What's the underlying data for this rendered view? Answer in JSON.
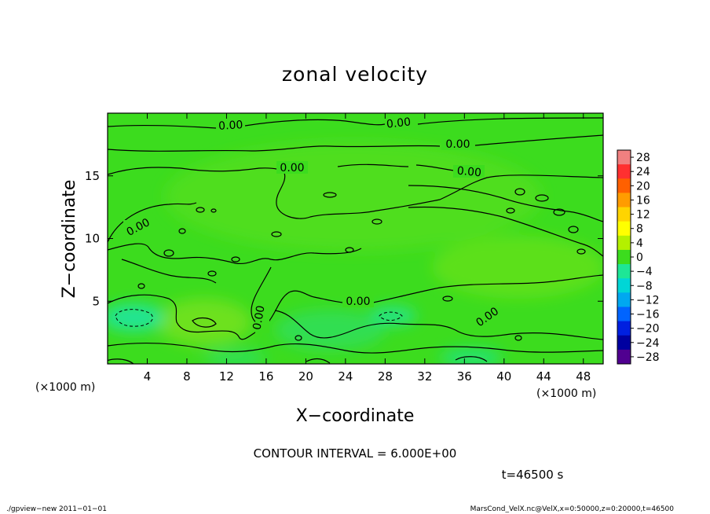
{
  "chart_data": {
    "type": "heatmap",
    "title": "zonal velocity",
    "xlabel": "X−coordinate",
    "ylabel": "Z−coordinate",
    "x_unit": "(×1000 m)",
    "y_unit": "(×1000 m)",
    "x_ticks": [
      4,
      8,
      12,
      16,
      20,
      24,
      28,
      32,
      36,
      40,
      44,
      48
    ],
    "y_ticks": [
      5,
      10,
      15
    ],
    "xlim": [
      0,
      50
    ],
    "ylim": [
      0,
      20
    ],
    "colorbar": {
      "labels": [
        "28",
        "24",
        "20",
        "16",
        "12",
        "8",
        "4",
        "0",
        "−4",
        "−8",
        "−12",
        "−16",
        "−20",
        "−24",
        "−28"
      ],
      "colors": [
        "#f08080",
        "#ff3030",
        "#ff6000",
        "#ff9c00",
        "#ffd400",
        "#ffff00",
        "#b4f000",
        "#3cdc1e",
        "#1ee696",
        "#00d6d6",
        "#00a8f0",
        "#0064ff",
        "#0020e0",
        "#0000a0",
        "#500090"
      ]
    },
    "contour_interval_text": "CONTOUR INTERVAL = 6.000E+00",
    "contour_labels": [
      "0.00",
      "0.00",
      "0.00",
      "0.00",
      "0.00",
      "0.00",
      "0.00",
      "0.00",
      "0.00"
    ],
    "time_text": "t=46500 s",
    "footer_left": "./gpview−new   2011−01−01",
    "footer_right": "MarsCond_VelX.nc@VelX,x=0:50000,z=0:20000,t=46500"
  }
}
